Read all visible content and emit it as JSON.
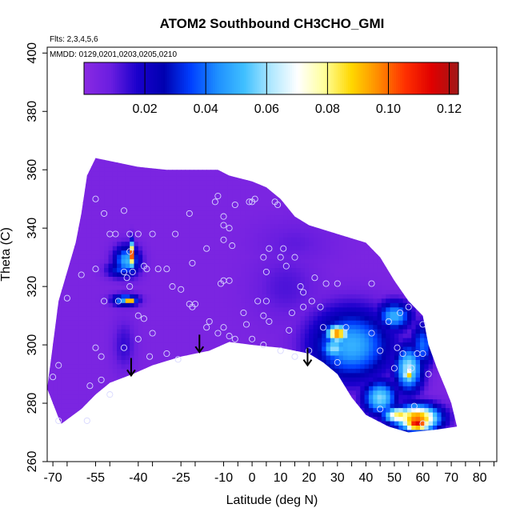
{
  "chart_data": {
    "type": "heatmap",
    "title": "ATOM2 Southbound CH3CHO_GMI",
    "annotations": {
      "flights": "Flts: 2,3,4,5,6",
      "dates": "MMDD: 0129,0201,0203,0205,0210"
    },
    "xlabel": "Latitude (deg N)",
    "ylabel": "Theta (C)",
    "xlim": [
      -72,
      86
    ],
    "ylim": [
      260,
      402
    ],
    "x_ticks": [
      -70,
      -65,
      -55,
      -50,
      -40,
      -35,
      -25,
      -20,
      -10,
      -5,
      0,
      5,
      10,
      15,
      20,
      25,
      30,
      35,
      40,
      45,
      50,
      55,
      60,
      65,
      70,
      75,
      80,
      85
    ],
    "x_tick_labels": [
      {
        "value": -70,
        "label": "-70"
      },
      {
        "value": -55,
        "label": "-55"
      },
      {
        "value": -40,
        "label": "-40"
      },
      {
        "value": -25,
        "label": "-25"
      },
      {
        "value": -10,
        "label": "-10"
      },
      {
        "value": 0,
        "label": "0"
      },
      {
        "value": 10,
        "label": "10"
      },
      {
        "value": 20,
        "label": "20"
      },
      {
        "value": 30,
        "label": "30"
      },
      {
        "value": 40,
        "label": "40"
      },
      {
        "value": 50,
        "label": "50"
      },
      {
        "value": 60,
        "label": "60"
      },
      {
        "value": 70,
        "label": "70"
      },
      {
        "value": 80,
        "label": "80"
      }
    ],
    "y_ticks": [
      260,
      280,
      300,
      320,
      340,
      360,
      380,
      400
    ],
    "colorbar": {
      "min": 0.0,
      "max": 0.123,
      "ticks": [
        0.02,
        0.04,
        0.06,
        0.08,
        0.1,
        0.12
      ],
      "tick_labels": [
        "0.02",
        "0.04",
        "0.06",
        "0.08",
        "0.10",
        "0.12"
      ],
      "colors": [
        "#8a2be2",
        "#6a1ee0",
        "#1a00cc",
        "#0000b0",
        "#0040ff",
        "#1e90ff",
        "#40c0ff",
        "#b0e8ff",
        "#ffffff",
        "#ffff99",
        "#ffd700",
        "#ff8c00",
        "#ff3000",
        "#e00000",
        "#a01818"
      ]
    },
    "background_value": 0.004,
    "domain": {
      "top": [
        [
          -58,
          358
        ],
        [
          -55,
          364
        ],
        [
          -50,
          363
        ],
        [
          -40,
          361
        ],
        [
          -30,
          360
        ],
        [
          -20,
          360
        ],
        [
          -12,
          360
        ],
        [
          -8,
          358
        ],
        [
          0,
          356
        ],
        [
          5,
          354
        ],
        [
          10,
          350
        ],
        [
          15,
          344
        ],
        [
          20,
          341
        ],
        [
          30,
          338
        ],
        [
          40,
          335
        ],
        [
          45,
          330
        ],
        [
          50,
          322
        ],
        [
          55,
          315
        ],
        [
          60,
          310
        ],
        [
          62,
          300
        ],
        [
          65,
          292
        ],
        [
          68,
          285
        ],
        [
          70,
          280
        ],
        [
          72,
          272
        ]
      ],
      "bottom": [
        [
          72,
          272
        ],
        [
          65,
          271
        ],
        [
          55,
          270
        ],
        [
          48,
          272
        ],
        [
          40,
          276
        ],
        [
          35,
          282
        ],
        [
          30,
          290
        ],
        [
          25,
          294
        ],
        [
          20,
          297
        ],
        [
          15,
          298
        ],
        [
          10,
          299
        ],
        [
          0,
          300
        ],
        [
          -8,
          301
        ],
        [
          -15,
          298
        ],
        [
          -25,
          296
        ],
        [
          -35,
          293
        ],
        [
          -42,
          290
        ],
        [
          -50,
          287
        ],
        [
          -55,
          283
        ],
        [
          -60,
          278
        ],
        [
          -67,
          273
        ],
        [
          -68,
          275
        ],
        [
          -70,
          280
        ],
        [
          -72,
          285
        ],
        [
          -70,
          300
        ],
        [
          -68,
          315
        ],
        [
          -65,
          325
        ],
        [
          -62,
          335
        ],
        [
          -60,
          345
        ],
        [
          -58,
          358
        ]
      ]
    },
    "features": [
      {
        "lat": -42.5,
        "theta": 331,
        "rx": 1.0,
        "ry": 4.5,
        "value": 0.11
      },
      {
        "lat": -44.0,
        "theta": 329,
        "rx": 4.5,
        "ry": 5.0,
        "value": 0.05
      },
      {
        "lat": -46.0,
        "theta": 326,
        "rx": 5.0,
        "ry": 3.0,
        "value": 0.035
      },
      {
        "lat": -43.0,
        "theta": 315.5,
        "rx": 2.0,
        "ry": 1.0,
        "value": 0.11
      },
      {
        "lat": -44.5,
        "theta": 315.5,
        "rx": 4.5,
        "ry": 2.0,
        "value": 0.05
      },
      {
        "lat": -45.0,
        "theta": 300,
        "rx": 4.0,
        "ry": 9.0,
        "value": 0.015
      },
      {
        "lat": 12.0,
        "theta": 320,
        "rx": 12.0,
        "ry": 12.0,
        "value": 0.012
      },
      {
        "lat": 15.0,
        "theta": 335,
        "rx": 14.0,
        "ry": 8.0,
        "value": 0.01
      },
      {
        "lat": 35.0,
        "theta": 300,
        "rx": 14.0,
        "ry": 12.0,
        "value": 0.05
      },
      {
        "lat": 30.0,
        "theta": 304,
        "rx": 4.0,
        "ry": 3.0,
        "value": 0.1
      },
      {
        "lat": 29.0,
        "theta": 299,
        "rx": 5.0,
        "ry": 4.0,
        "value": 0.06
      },
      {
        "lat": 50.0,
        "theta": 310,
        "rx": 6.0,
        "ry": 5.0,
        "value": 0.05
      },
      {
        "lat": 55.0,
        "theta": 292,
        "rx": 5.0,
        "ry": 8.0,
        "value": 0.062
      },
      {
        "lat": 55.0,
        "theta": 290,
        "rx": 2.0,
        "ry": 2.5,
        "value": 0.09
      },
      {
        "lat": 60.0,
        "theta": 300,
        "rx": 4.0,
        "ry": 8.0,
        "value": 0.04
      },
      {
        "lat": 45.0,
        "theta": 282,
        "rx": 6.0,
        "ry": 6.0,
        "value": 0.058
      },
      {
        "lat": 58.0,
        "theta": 275,
        "rx": 8.0,
        "ry": 4.5,
        "value": 0.1
      },
      {
        "lat": 58.0,
        "theta": 273,
        "rx": 5.0,
        "ry": 2.5,
        "value": 0.115
      },
      {
        "lat": 52.0,
        "theta": 276,
        "rx": 6.0,
        "ry": 3.0,
        "value": 0.085
      }
    ],
    "samples": [
      [
        -55,
        350
      ],
      [
        -52,
        345
      ],
      [
        -45,
        346
      ],
      [
        -50,
        338
      ],
      [
        -48,
        338
      ],
      [
        -43,
        338
      ],
      [
        -40,
        338
      ],
      [
        -35,
        338
      ],
      [
        -27,
        338
      ],
      [
        -22,
        345
      ],
      [
        -21,
        328
      ],
      [
        -16,
        333
      ],
      [
        -8,
        340
      ],
      [
        -10,
        344
      ],
      [
        -10,
        341
      ],
      [
        -10,
        336
      ],
      [
        -11,
        321
      ],
      [
        -10,
        322
      ],
      [
        -8,
        322
      ],
      [
        -7,
        334
      ],
      [
        -13,
        349
      ],
      [
        -12,
        351
      ],
      [
        -6,
        348
      ],
      [
        -1,
        349
      ],
      [
        0,
        349
      ],
      [
        1,
        350
      ],
      [
        4,
        330
      ],
      [
        6,
        333
      ],
      [
        5,
        325
      ],
      [
        5,
        315
      ],
      [
        6,
        308
      ],
      [
        8,
        349
      ],
      [
        9,
        348
      ],
      [
        10,
        330
      ],
      [
        11,
        333
      ],
      [
        12,
        327
      ],
      [
        15,
        330
      ],
      [
        17,
        320
      ],
      [
        18,
        318
      ],
      [
        22,
        323
      ],
      [
        24,
        313
      ],
      [
        25,
        306
      ],
      [
        26,
        321
      ],
      [
        30,
        321
      ],
      [
        33,
        306
      ],
      [
        30,
        294
      ],
      [
        42,
        321
      ],
      [
        42,
        304
      ],
      [
        45,
        298
      ],
      [
        48,
        308
      ],
      [
        50,
        292
      ],
      [
        51,
        299
      ],
      [
        52,
        311
      ],
      [
        53,
        297
      ],
      [
        55,
        313
      ],
      [
        56,
        292
      ],
      [
        57,
        279
      ],
      [
        45,
        278
      ],
      [
        58,
        297
      ],
      [
        60,
        297
      ],
      [
        60,
        307
      ],
      [
        62,
        290
      ],
      [
        60,
        273
      ],
      [
        -43,
        332
      ],
      [
        -42,
        325
      ],
      [
        -44,
        323
      ],
      [
        -45,
        325
      ],
      [
        -43,
        320
      ],
      [
        -47,
        315
      ],
      [
        -52,
        315
      ],
      [
        -40,
        310
      ],
      [
        -38,
        309
      ],
      [
        -35,
        304
      ],
      [
        -36,
        296
      ],
      [
        -30,
        297
      ],
      [
        -26,
        295
      ],
      [
        -55,
        299
      ],
      [
        -53,
        296
      ],
      [
        -57,
        286
      ],
      [
        -53,
        288
      ],
      [
        -50,
        283
      ],
      [
        -58,
        274
      ],
      [
        -68,
        274
      ],
      [
        -70,
        289
      ],
      [
        -68,
        293
      ],
      [
        -65,
        316
      ],
      [
        -60,
        324
      ],
      [
        -55,
        326
      ],
      [
        -38,
        327
      ],
      [
        -37,
        326
      ],
      [
        -33,
        326
      ],
      [
        -30,
        326
      ],
      [
        -28,
        320
      ],
      [
        -25,
        319
      ],
      [
        -22,
        314
      ],
      [
        -20,
        314
      ],
      [
        -21,
        313
      ],
      [
        -15,
        308
      ],
      [
        -16,
        306
      ],
      [
        -12,
        304
      ],
      [
        -10,
        306
      ],
      [
        -8,
        303
      ],
      [
        -6,
        302
      ],
      [
        -2,
        307
      ],
      [
        0,
        302
      ],
      [
        -3,
        311
      ],
      [
        2,
        315
      ],
      [
        4,
        310
      ],
      [
        4,
        300
      ],
      [
        10,
        298
      ],
      [
        15,
        296
      ],
      [
        13,
        305
      ],
      [
        20,
        298
      ],
      [
        21,
        315
      ],
      [
        18,
        313
      ],
      [
        14,
        311
      ],
      [
        -40,
        302
      ],
      [
        -45,
        299
      ]
    ],
    "arrows": [
      {
        "lat": -42.5,
        "theta_top": 295.5,
        "theta_bottom": 289.5
      },
      {
        "lat": -18.5,
        "theta_top": 303.5,
        "theta_bottom": 297.5
      },
      {
        "lat": 19.5,
        "theta_top": 299,
        "theta_bottom": 293
      }
    ]
  }
}
